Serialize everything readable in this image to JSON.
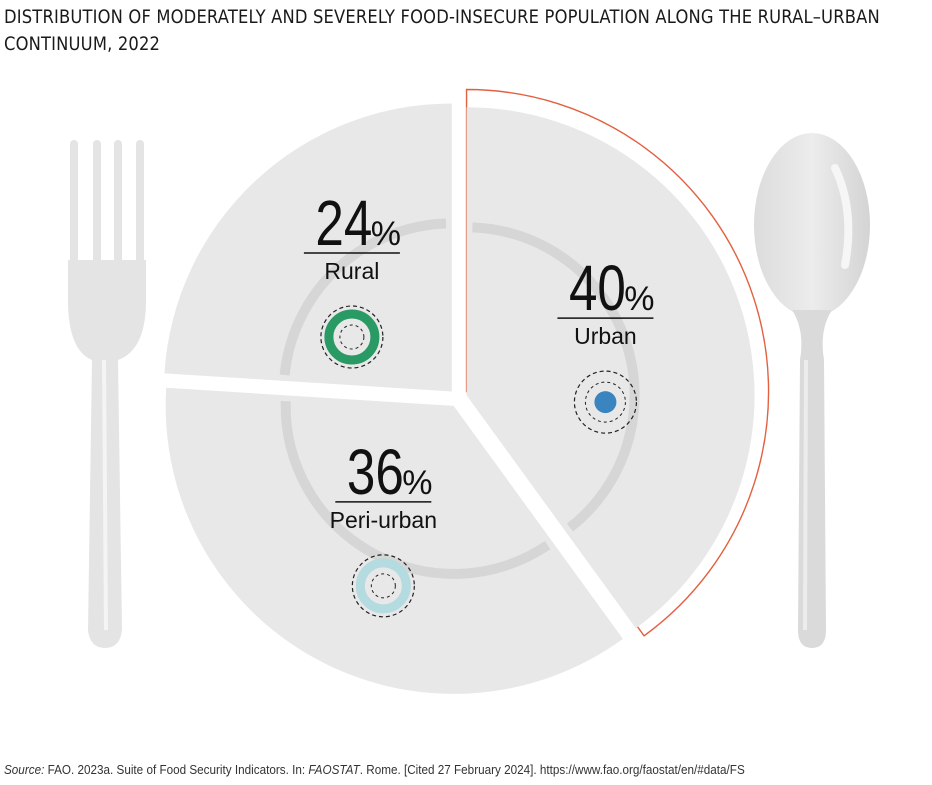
{
  "title": "DISTRIBUTION OF MODERATELY AND SEVERELY FOOD-INSECURE POPULATION ALONG THE RURAL–URBAN CONTINUUM, 2022",
  "source": {
    "label": "Source:",
    "text1": " FAO. 2023a. Suite of Food Security Indicators. In: ",
    "italic": "FAOSTAT",
    "text2": ". Rome. [Cited 27 February 2024]. https://www.fao.org/faostat/en/#data/FS"
  },
  "colors": {
    "plate": "#e8e8e8",
    "plate_ring": "#d6d6d6",
    "cutlery": "#e6e6e6",
    "highlight": "#e2603f"
  },
  "chart_data": {
    "type": "pie",
    "categories": [
      "Urban",
      "Peri-urban",
      "Rural"
    ],
    "values": [
      40,
      36,
      24
    ],
    "unit": "%",
    "highlighted": "Urban",
    "markers": {
      "Urban": "#3a84c0",
      "Peri-urban": "#b3dbe0",
      "Rural": "#2a9a65"
    }
  }
}
